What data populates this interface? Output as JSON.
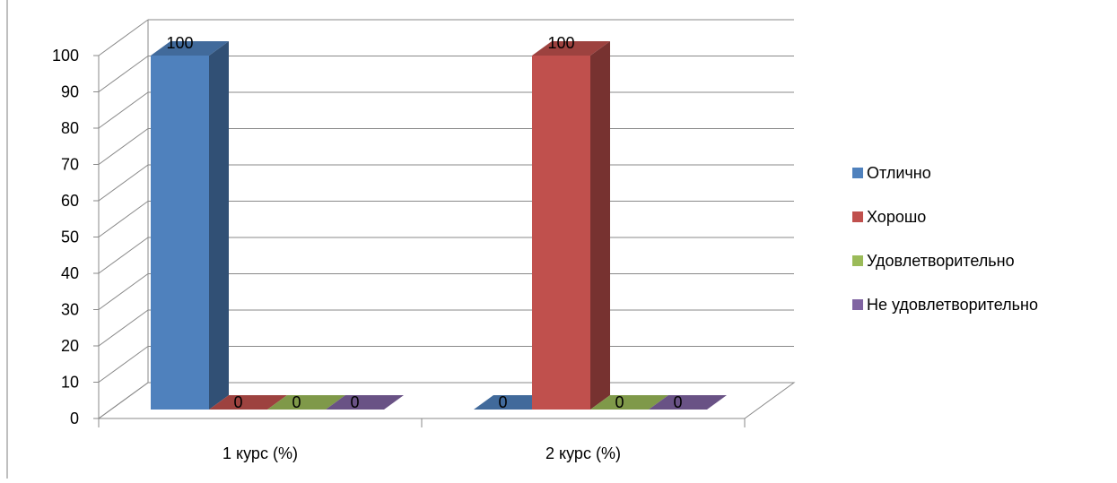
{
  "chart_data": {
    "type": "bar",
    "style": "3d-clustered-column",
    "categories": [
      "1 курс (%)",
      "2 курс (%)"
    ],
    "series": [
      {
        "name": "Отлично",
        "values": [
          100,
          0
        ],
        "color": "#4F81BD"
      },
      {
        "name": "Хорошо",
        "values": [
          0,
          100
        ],
        "color": "#C0504D"
      },
      {
        "name": "Удовлетворительно",
        "values": [
          0,
          0
        ],
        "color": "#9BBB59"
      },
      {
        "name": "Не удовлетворительно",
        "values": [
          0,
          0
        ],
        "color": "#8064A2"
      }
    ],
    "data_labels": [
      [
        "100",
        "0",
        "0",
        "0"
      ],
      [
        "0",
        "100",
        "0",
        "0"
      ]
    ],
    "ylim": [
      0,
      100
    ],
    "yticks": [
      "0",
      "10",
      "20",
      "30",
      "40",
      "50",
      "60",
      "70",
      "80",
      "90",
      "100"
    ],
    "grid": true,
    "legend": "right",
    "title": "",
    "xlabel": "",
    "ylabel": ""
  }
}
